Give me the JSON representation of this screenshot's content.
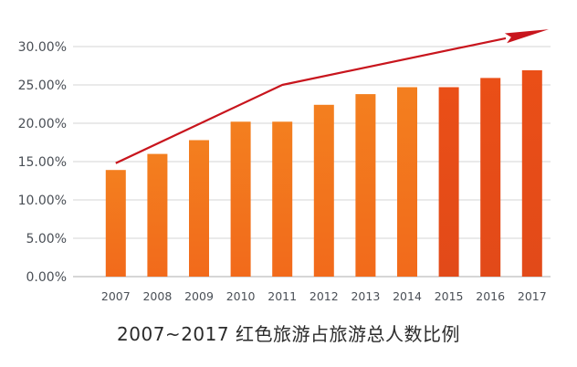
{
  "chart_data": {
    "type": "bar",
    "title": "2007~2017 红色旅游占旅游总人数比例",
    "xlabel": "",
    "ylabel": "",
    "categories": [
      "2007",
      "2008",
      "2009",
      "2010",
      "2011",
      "2012",
      "2013",
      "2014",
      "2015",
      "2016",
      "2017"
    ],
    "values": [
      13.9,
      16.0,
      17.8,
      20.2,
      20.2,
      22.4,
      23.8,
      24.7,
      24.7,
      25.9,
      26.9
    ],
    "ylim": [
      0,
      30
    ],
    "yticks": [
      0,
      5,
      10,
      15,
      20,
      25,
      30
    ],
    "ytick_labels": [
      "0.00%",
      "5.00%",
      "10.00%",
      "15.00%",
      "20.00%",
      "25.00%",
      "30.00%"
    ],
    "grid": true,
    "legend": "none",
    "trend_arrow": {
      "points": [
        {
          "x": "2007",
          "y": 14.8
        },
        {
          "x": "2011",
          "y": 25.0
        },
        {
          "x": "2017",
          "y": 31.8
        }
      ]
    },
    "colors": {
      "bar_top": "#f37f1f",
      "bar_bottom": "#f26a1b",
      "bar_right_top": "#ea4f17",
      "bar_right_bottom": "#e24a19",
      "arrow": "#c8151d",
      "grid": "#d6d6d6",
      "axis_text": "#4a4f56"
    }
  }
}
